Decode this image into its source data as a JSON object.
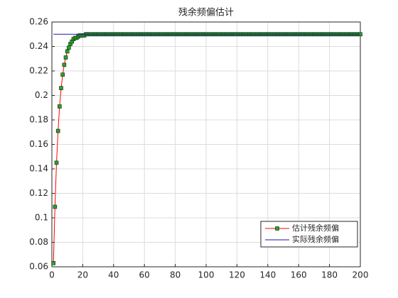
{
  "chart_data": {
    "type": "line",
    "title": "残余频偏估计",
    "xlim": [
      0,
      200
    ],
    "xticks": [
      0,
      20,
      40,
      60,
      80,
      100,
      120,
      140,
      160,
      180,
      200
    ],
    "ylim": [
      0.06,
      0.26
    ],
    "yticks": [
      0.06,
      0.08,
      0.1,
      0.12,
      0.14,
      0.16,
      0.18,
      0.2,
      0.22,
      0.24,
      0.26
    ],
    "grid": true,
    "legend_location": "southeast",
    "series": [
      {
        "name": "估计残余频偏",
        "color": "#ff0000",
        "marker": "square",
        "marker_color": "#22a822",
        "x": [
          1,
          2,
          3,
          4,
          5,
          6,
          7,
          8,
          9,
          10,
          11,
          12,
          13,
          14,
          15,
          16,
          17,
          18,
          19,
          20,
          21,
          22,
          23,
          24,
          25,
          26,
          27,
          28,
          29,
          30,
          31,
          32,
          33,
          34,
          35,
          36,
          37,
          38,
          39,
          40,
          41,
          42,
          43,
          44,
          45,
          46,
          47,
          48,
          49,
          50,
          51,
          52,
          53,
          54,
          55,
          56,
          57,
          58,
          59,
          60,
          61,
          62,
          63,
          64,
          65,
          66,
          67,
          68,
          69,
          70,
          71,
          72,
          73,
          74,
          75,
          76,
          77,
          78,
          79,
          80,
          81,
          82,
          83,
          84,
          85,
          86,
          87,
          88,
          89,
          90,
          91,
          92,
          93,
          94,
          95,
          96,
          97,
          98,
          99,
          100,
          101,
          102,
          103,
          104,
          105,
          106,
          107,
          108,
          109,
          110,
          111,
          112,
          113,
          114,
          115,
          116,
          117,
          118,
          119,
          120,
          121,
          122,
          123,
          124,
          125,
          126,
          127,
          128,
          129,
          130,
          131,
          132,
          133,
          134,
          135,
          136,
          137,
          138,
          139,
          140,
          141,
          142,
          143,
          144,
          145,
          146,
          147,
          148,
          149,
          150,
          151,
          152,
          153,
          154,
          155,
          156,
          157,
          158,
          159,
          160,
          161,
          162,
          163,
          164,
          165,
          166,
          167,
          168,
          169,
          170,
          171,
          172,
          173,
          174,
          175,
          176,
          177,
          178,
          179,
          180,
          181,
          182,
          183,
          184,
          185,
          186,
          187,
          188,
          189,
          190,
          191,
          192,
          193,
          194,
          195,
          196,
          197,
          198,
          199,
          200
        ],
        "values": [
          0.063,
          0.109,
          0.145,
          0.171,
          0.191,
          0.206,
          0.217,
          0.225,
          0.231,
          0.236,
          0.239,
          0.242,
          0.244,
          0.246,
          0.247,
          0.247,
          0.248,
          0.249,
          0.249,
          0.249,
          0.249,
          0.25,
          0.25,
          0.25,
          0.25,
          0.25,
          0.25,
          0.25,
          0.25,
          0.25,
          0.25,
          0.25,
          0.25,
          0.25,
          0.25,
          0.25,
          0.25,
          0.25,
          0.25,
          0.25,
          0.25,
          0.25,
          0.25,
          0.25,
          0.25,
          0.25,
          0.25,
          0.25,
          0.25,
          0.25,
          0.25,
          0.25,
          0.25,
          0.25,
          0.25,
          0.25,
          0.25,
          0.25,
          0.25,
          0.25,
          0.25,
          0.25,
          0.25,
          0.25,
          0.25,
          0.25,
          0.25,
          0.25,
          0.25,
          0.25,
          0.25,
          0.25,
          0.25,
          0.25,
          0.25,
          0.25,
          0.25,
          0.25,
          0.25,
          0.25,
          0.25,
          0.25,
          0.25,
          0.25,
          0.25,
          0.25,
          0.25,
          0.25,
          0.25,
          0.25,
          0.25,
          0.25,
          0.25,
          0.25,
          0.25,
          0.25,
          0.25,
          0.25,
          0.25,
          0.25,
          0.25,
          0.25,
          0.25,
          0.25,
          0.25,
          0.25,
          0.25,
          0.25,
          0.25,
          0.25,
          0.25,
          0.25,
          0.25,
          0.25,
          0.25,
          0.25,
          0.25,
          0.25,
          0.25,
          0.25,
          0.25,
          0.25,
          0.25,
          0.25,
          0.25,
          0.25,
          0.25,
          0.25,
          0.25,
          0.25,
          0.25,
          0.25,
          0.25,
          0.25,
          0.25,
          0.25,
          0.25,
          0.25,
          0.25,
          0.25,
          0.25,
          0.25,
          0.25,
          0.25,
          0.25,
          0.25,
          0.25,
          0.25,
          0.25,
          0.25,
          0.25,
          0.25,
          0.25,
          0.25,
          0.25,
          0.25,
          0.25,
          0.25,
          0.25,
          0.25,
          0.25,
          0.25,
          0.25,
          0.25,
          0.25,
          0.25,
          0.25,
          0.25,
          0.25,
          0.25,
          0.25,
          0.25,
          0.25,
          0.25,
          0.25,
          0.25,
          0.25,
          0.25,
          0.25,
          0.25,
          0.25,
          0.25,
          0.25,
          0.25,
          0.25,
          0.25,
          0.25,
          0.25,
          0.25,
          0.25,
          0.25,
          0.25,
          0.25,
          0.25,
          0.25,
          0.25,
          0.25,
          0.25,
          0.25,
          0.25
        ]
      },
      {
        "name": "实际残余频偏",
        "color": "#1a1aa6",
        "x": [
          1,
          200
        ],
        "values": [
          0.25,
          0.25
        ]
      }
    ]
  }
}
